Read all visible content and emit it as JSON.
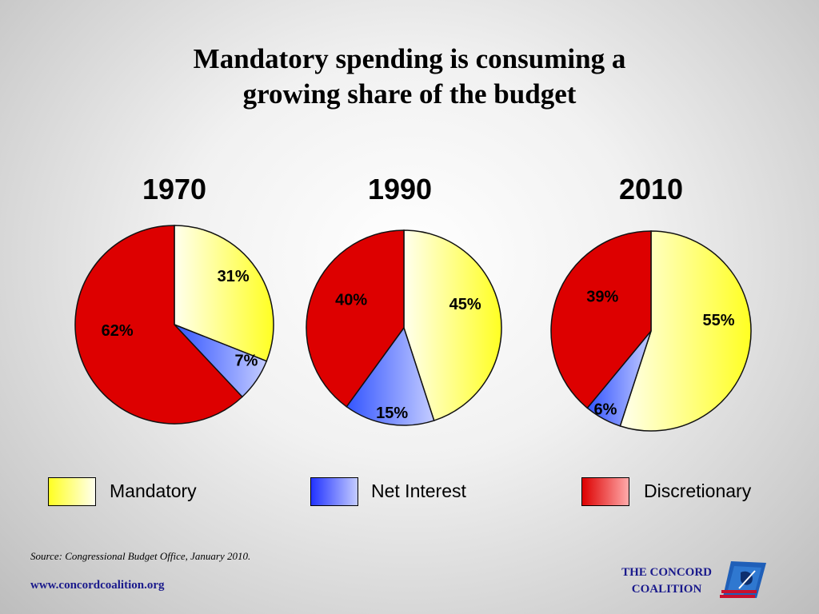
{
  "title": {
    "line1": "Mandatory spending is consuming a",
    "line2": "growing share of the budget"
  },
  "chart_data": {
    "type": "pie",
    "title": "Mandatory spending is consuming a growing share of the budget",
    "categories": [
      "Mandatory",
      "Net Interest",
      "Discretionary"
    ],
    "colors": {
      "Mandatory": "#ffff33",
      "Net Interest": "#4466ff",
      "Discretionary": "#dd1111"
    },
    "legend_position": "bottom",
    "pies": [
      {
        "label": "1970",
        "values": [
          31,
          7,
          62
        ],
        "labels": [
          "31%",
          "7%",
          "62%"
        ]
      },
      {
        "label": "1990",
        "values": [
          45,
          15,
          40
        ],
        "labels": [
          "45%",
          "15%",
          "40%"
        ]
      },
      {
        "label": "2010",
        "values": [
          55,
          6,
          39
        ],
        "labels": [
          "55%",
          "6%",
          "39%"
        ]
      }
    ]
  },
  "legend": {
    "mandatory": "Mandatory",
    "net_interest": "Net Interest",
    "discretionary": "Discretionary"
  },
  "footer": {
    "source": "Source: Congressional Budget Office, January 2010.",
    "website": "www.concordcoalition.org",
    "logo_line1": "THE CONCORD",
    "logo_line2": "COALITION"
  }
}
